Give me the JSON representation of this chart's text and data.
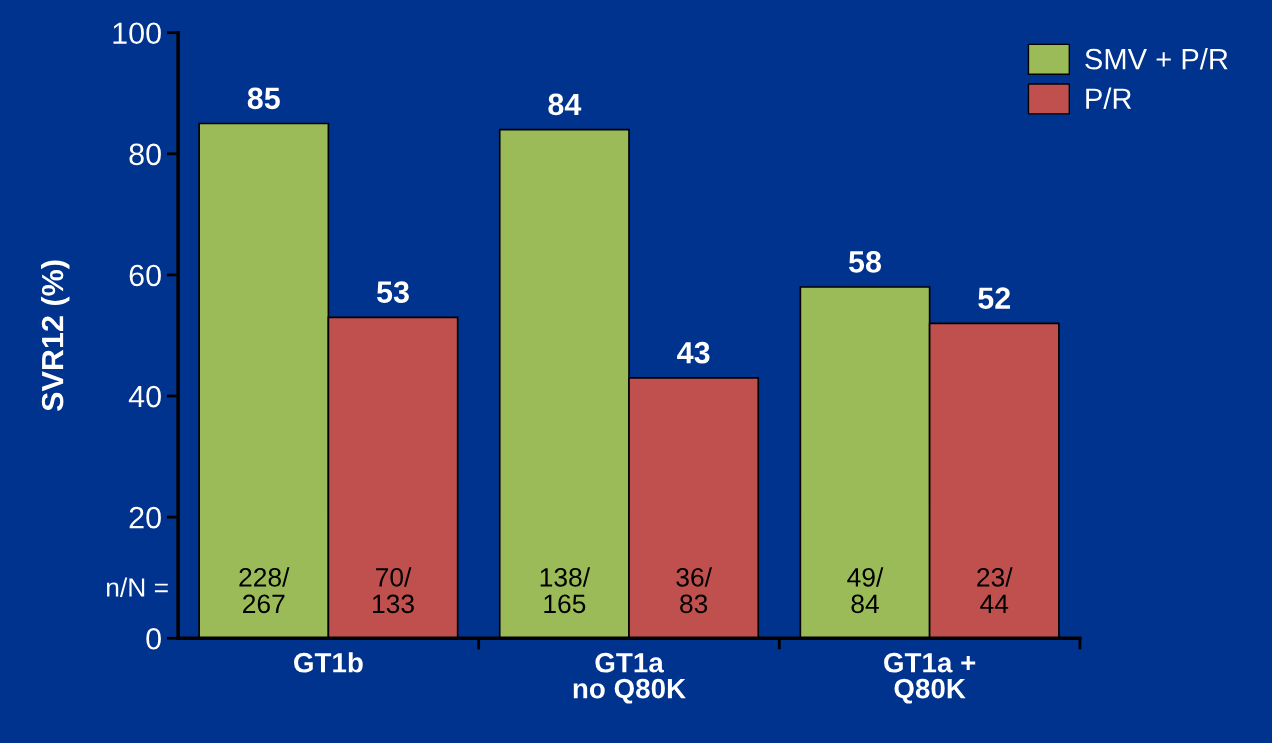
{
  "chart_data": {
    "type": "bar",
    "ylabel": "SVR12 (%)",
    "categories": [
      "GT1b",
      "GT1a\nno Q80K",
      "GT1a +\nQ80K"
    ],
    "series": [
      {
        "name": "SMV + P/R",
        "color": "#9bbb59",
        "values": [
          85,
          84,
          58
        ]
      },
      {
        "name": "P/R",
        "color": "#c0504d",
        "values": [
          53,
          43,
          52
        ]
      }
    ],
    "ylim": [
      0,
      100
    ],
    "yticks": [
      0,
      20,
      40,
      60,
      80,
      100
    ],
    "data_labels": true,
    "grid": false,
    "legend": "top right",
    "annotations": [
      "n/N =",
      "228/\n267",
      "70/\n133",
      "138/\n165",
      "36/\n83",
      "49/\n84",
      "23/\n44"
    ]
  }
}
